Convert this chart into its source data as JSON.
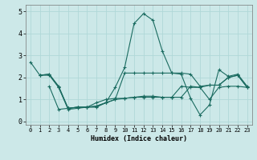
{
  "xlabel": "Humidex (Indice chaleur)",
  "bg_color": "#cce8e8",
  "grid_color_major": "#b0d8d8",
  "grid_color_minor": "#b0d8d8",
  "line_color": "#1a6b60",
  "markersize": 2.5,
  "linewidth": 0.8,
  "xlim": [
    -0.5,
    23.5
  ],
  "ylim": [
    -0.15,
    5.3
  ],
  "xticks": [
    0,
    1,
    2,
    3,
    4,
    5,
    6,
    7,
    8,
    9,
    10,
    11,
    12,
    13,
    14,
    15,
    16,
    17,
    18,
    19,
    20,
    21,
    22,
    23
  ],
  "yticks": [
    0,
    1,
    2,
    3,
    4,
    5
  ],
  "lines": [
    {
      "x": [
        0,
        1,
        2,
        3,
        4,
        5,
        6,
        7,
        8,
        9,
        10,
        11,
        12,
        13,
        14,
        15,
        16,
        17,
        18,
        19,
        20,
        21,
        22,
        23
      ],
      "y": [
        2.7,
        2.1,
        2.1,
        1.55,
        0.6,
        0.65,
        0.65,
        0.7,
        0.85,
        1.55,
        2.45,
        4.45,
        4.9,
        4.6,
        3.2,
        2.2,
        2.15,
        1.05,
        0.3,
        0.75,
        2.35,
        2.05,
        2.15,
        1.6
      ]
    },
    {
      "x": [
        1,
        2,
        3,
        4,
        5,
        6,
        7,
        8,
        9,
        10,
        11,
        12,
        13,
        14,
        15,
        16,
        17,
        18,
        19,
        20,
        21,
        22,
        23
      ],
      "y": [
        2.1,
        2.15,
        1.6,
        0.6,
        0.65,
        0.65,
        0.7,
        0.85,
        1.0,
        2.2,
        2.2,
        2.2,
        2.2,
        2.2,
        2.2,
        2.2,
        2.15,
        1.6,
        1.65,
        1.65,
        2.0,
        2.1,
        1.55
      ]
    },
    {
      "x": [
        1,
        2,
        3,
        4,
        5,
        6,
        7,
        8,
        9,
        10,
        11,
        12,
        13,
        14,
        15,
        16,
        17,
        18,
        19,
        20,
        21,
        22,
        23
      ],
      "y": [
        2.1,
        2.15,
        1.55,
        0.55,
        0.6,
        0.65,
        0.65,
        0.85,
        1.0,
        1.05,
        1.1,
        1.15,
        1.15,
        1.1,
        1.1,
        1.1,
        1.6,
        1.55,
        1.0,
        1.55,
        1.6,
        1.6,
        1.55
      ]
    },
    {
      "x": [
        2,
        3,
        4,
        5,
        6,
        7,
        8,
        9,
        10,
        11,
        12,
        13,
        14,
        15,
        16,
        17,
        18,
        19,
        20,
        21,
        22,
        23
      ],
      "y": [
        1.6,
        0.55,
        0.6,
        0.65,
        0.65,
        0.85,
        1.0,
        1.05,
        1.05,
        1.1,
        1.1,
        1.1,
        1.1,
        1.1,
        1.6,
        1.55,
        1.55,
        1.65,
        1.65,
        2.0,
        2.1,
        1.55
      ]
    }
  ]
}
